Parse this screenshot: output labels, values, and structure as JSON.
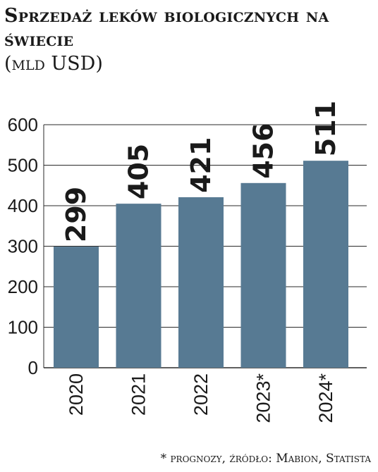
{
  "chart_data": {
    "type": "bar",
    "title": "Sprzedaż leków biologicznych na świecie",
    "subtitle": "(mld USD)",
    "categories": [
      "2020",
      "2021",
      "2022",
      "2023*",
      "2024*"
    ],
    "values": [
      299,
      405,
      421,
      456,
      511
    ],
    "data_labels": [
      "299",
      "405",
      "421",
      "456",
      "511"
    ],
    "yticks": [
      "0",
      "100",
      "200",
      "300",
      "400",
      "500",
      "600"
    ],
    "ylim": [
      0,
      600
    ],
    "grid": true,
    "bar_color": "#577a93",
    "footnote": "* prognozy, źródło: Mabion, Statista"
  }
}
